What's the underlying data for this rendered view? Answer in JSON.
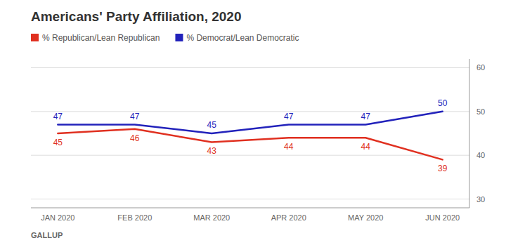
{
  "chart_data": {
    "type": "line",
    "title": "Americans' Party Affiliation, 2020",
    "categories": [
      "JAN 2020",
      "FEB 2020",
      "MAR 2020",
      "APR 2020",
      "MAY 2020",
      "JUN 2020"
    ],
    "series": [
      {
        "name": "% Republican/Lean Republican",
        "color": "#e03020",
        "values": [
          45,
          46,
          43,
          44,
          44,
          39
        ]
      },
      {
        "name": "% Democrat/Lean Democratic",
        "color": "#2222bb",
        "values": [
          47,
          47,
          45,
          47,
          47,
          50
        ]
      }
    ],
    "ylim": [
      28,
      62
    ],
    "yticks": [
      30,
      40,
      50,
      60
    ],
    "grid": true,
    "data_labels": true,
    "legend": "top-left",
    "annotations": [
      "GALLUP"
    ]
  }
}
